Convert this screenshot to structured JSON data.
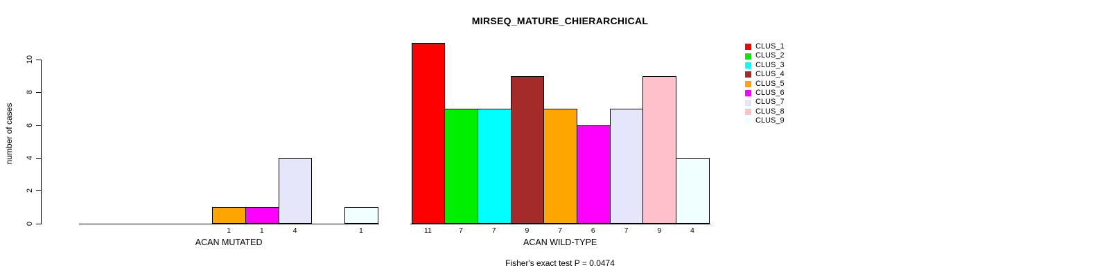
{
  "title": "MIRSEQ_MATURE_CHIERARCHICAL",
  "footnote": "Fisher's exact test P = 0.0474",
  "chart_data": {
    "type": "bar",
    "title": "MIRSEQ_MATURE_CHIERARCHICAL",
    "ylabel": "number of cases",
    "xlabel": "",
    "ylim": [
      0,
      10
    ],
    "yticks": [
      0,
      2,
      4,
      6,
      8,
      10
    ],
    "grid": false,
    "legend_position": "right",
    "categories": [
      "ACAN MUTATED",
      "ACAN WILD-TYPE"
    ],
    "series": [
      {
        "name": "CLUS_1",
        "color": "#FF0000",
        "values": [
          0,
          11
        ]
      },
      {
        "name": "CLUS_2",
        "color": "#00EE00",
        "values": [
          0,
          7
        ]
      },
      {
        "name": "CLUS_3",
        "color": "#00FFFF",
        "values": [
          0,
          7
        ]
      },
      {
        "name": "CLUS_4",
        "color": "#A52A2A",
        "values": [
          0,
          9
        ]
      },
      {
        "name": "CLUS_5",
        "color": "#FFA500",
        "values": [
          1,
          7
        ]
      },
      {
        "name": "CLUS_6",
        "color": "#FF00FF",
        "values": [
          1,
          6
        ]
      },
      {
        "name": "CLUS_7",
        "color": "#E6E6FA",
        "values": [
          4,
          7
        ]
      },
      {
        "name": "CLUS_8",
        "color": "#FFC0CB",
        "values": [
          0,
          9
        ]
      },
      {
        "name": "CLUS_9",
        "color": "#F0FFFF",
        "values": [
          1,
          4
        ]
      }
    ],
    "bar_value_labels_shown": "only non-zero",
    "annotation": "Fisher's exact test P = 0.0474"
  }
}
